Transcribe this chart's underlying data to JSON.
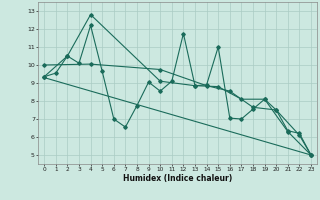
{
  "xlabel": "Humidex (Indice chaleur)",
  "xlim": [
    -0.5,
    23.5
  ],
  "ylim": [
    4.5,
    13.5
  ],
  "yticks": [
    5,
    6,
    7,
    8,
    9,
    10,
    11,
    12,
    13
  ],
  "xticks": [
    0,
    1,
    2,
    3,
    4,
    5,
    6,
    7,
    8,
    9,
    10,
    11,
    12,
    13,
    14,
    15,
    16,
    17,
    18,
    19,
    20,
    21,
    22,
    23
  ],
  "line_color": "#1a6b5a",
  "bg_color": "#cce8e0",
  "grid_color": "#aaccC4",
  "line1_x": [
    0,
    1,
    2,
    3,
    4,
    5,
    6,
    7,
    8,
    9,
    10,
    11,
    12,
    13,
    14,
    15,
    16,
    17,
    18,
    19,
    20,
    21,
    22,
    23
  ],
  "line1_y": [
    9.35,
    9.55,
    10.5,
    10.1,
    12.2,
    9.65,
    7.0,
    6.55,
    7.75,
    9.05,
    8.55,
    9.1,
    11.75,
    8.85,
    8.9,
    11.0,
    7.05,
    7.0,
    7.55,
    8.1,
    7.5,
    6.35,
    6.2,
    5.0
  ],
  "line2_x": [
    0,
    2,
    4,
    10,
    13,
    15,
    17,
    19,
    21,
    23
  ],
  "line2_y": [
    9.35,
    10.5,
    12.8,
    9.1,
    8.85,
    8.8,
    8.1,
    8.1,
    6.3,
    5.0
  ],
  "line3_x": [
    0,
    23
  ],
  "line3_y": [
    9.3,
    5.0
  ],
  "line4_x": [
    0,
    4,
    10,
    14,
    16,
    18,
    20,
    22,
    23
  ],
  "line4_y": [
    10.0,
    10.05,
    9.75,
    8.85,
    8.55,
    7.65,
    7.5,
    6.1,
    5.0
  ]
}
